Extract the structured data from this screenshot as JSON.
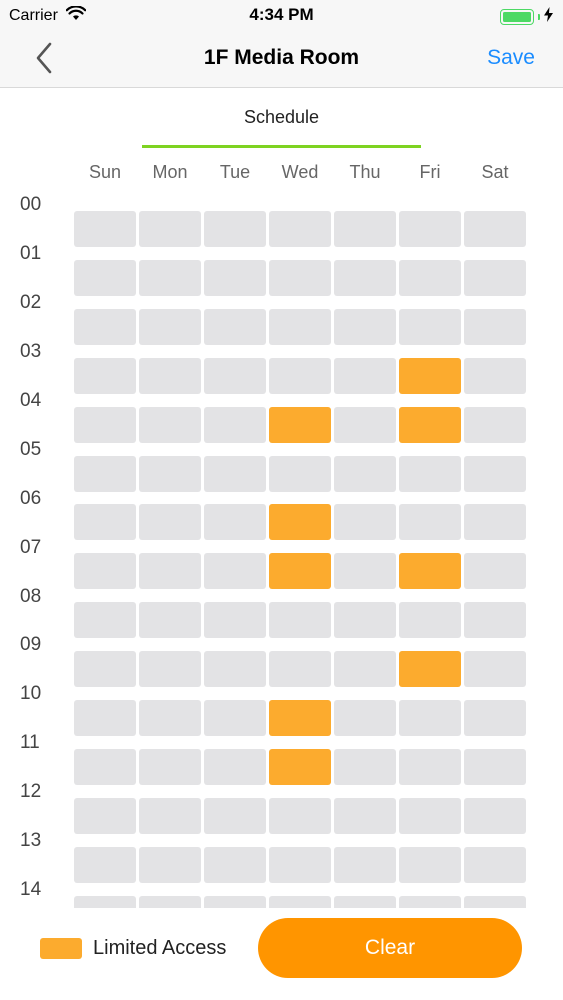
{
  "status_bar": {
    "carrier": "Carrier",
    "time": "4:34 PM",
    "battery_icon": "battery-full-icon",
    "wifi_icon": "wifi-icon",
    "charging_icon": "charging-bolt-icon"
  },
  "nav": {
    "title": "1F Media Room",
    "save_label": "Save",
    "back_icon": "chevron-left-icon"
  },
  "tabs": [
    {
      "label": "Schedule",
      "selected": true
    }
  ],
  "days": [
    "Sun",
    "Mon",
    "Tue",
    "Wed",
    "Thu",
    "Fri",
    "Sat"
  ],
  "hours": [
    "00",
    "01",
    "02",
    "03",
    "04",
    "05",
    "06",
    "07",
    "08",
    "09",
    "10",
    "11",
    "12",
    "13",
    "14"
  ],
  "schedule": {
    "visible_rows": 15,
    "limited_cells": [
      {
        "row": 3,
        "day": "Fri"
      },
      {
        "row": 4,
        "day": "Wed"
      },
      {
        "row": 4,
        "day": "Fri"
      },
      {
        "row": 6,
        "day": "Wed"
      },
      {
        "row": 7,
        "day": "Wed"
      },
      {
        "row": 7,
        "day": "Fri"
      },
      {
        "row": 9,
        "day": "Fri"
      },
      {
        "row": 10,
        "day": "Wed"
      },
      {
        "row": 11,
        "day": "Wed"
      }
    ]
  },
  "legend": {
    "label": "Limited Access"
  },
  "clear_label": "Clear",
  "colors": {
    "accent_blue": "#1a8cff",
    "limited_orange": "#fcab2e",
    "clear_button": "#ff9500",
    "empty_cell": "#e3e3e5",
    "tab_underline": "#7ed321",
    "battery_green": "#4cd964"
  }
}
